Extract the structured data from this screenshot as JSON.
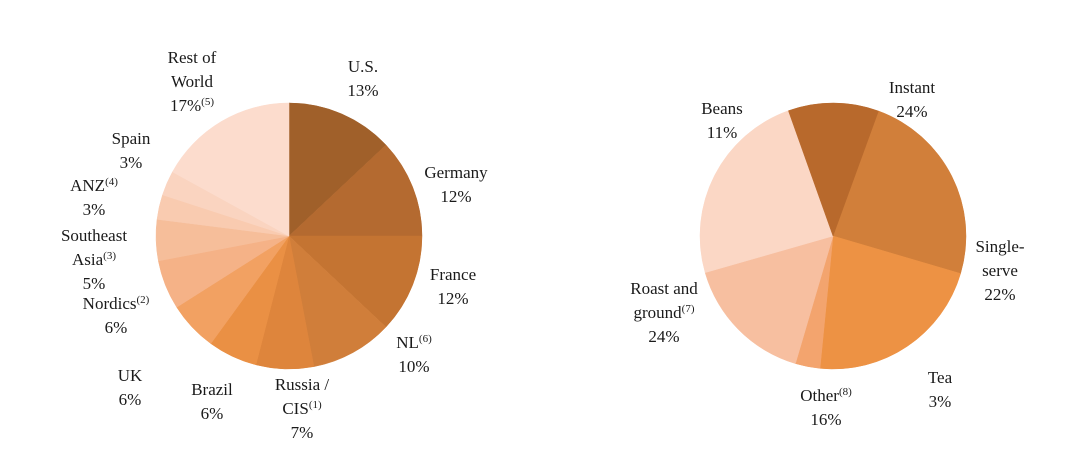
{
  "chart_data": [
    {
      "type": "pie",
      "slices": [
        {
          "label": "U.S.",
          "value": 13,
          "pct_text": "13%",
          "note": "",
          "color": "#A0602A"
        },
        {
          "label": "Germany",
          "value": 12,
          "pct_text": "12%",
          "note": "",
          "color": "#B46A30"
        },
        {
          "label": "France",
          "value": 12,
          "pct_text": "12%",
          "note": "",
          "color": "#C47432"
        },
        {
          "label": "NL",
          "value": 10,
          "pct_text": "10%",
          "note": "(6)",
          "color": "#D07E3A"
        },
        {
          "label": "Russia / CIS",
          "value": 7,
          "pct_text": "7%",
          "note": "(1)",
          "color": "#DE853C"
        },
        {
          "label": "Brazil",
          "value": 6,
          "pct_text": "6%",
          "note": "",
          "color": "#EA9044"
        },
        {
          "label": "UK",
          "value": 6,
          "pct_text": "6%",
          "note": "",
          "color": "#F2A162"
        },
        {
          "label": "Nordics",
          "value": 6,
          "pct_text": "6%",
          "note": "(2)",
          "color": "#F5B287"
        },
        {
          "label": "Southeast Asia",
          "value": 5,
          "pct_text": "5%",
          "note": "(3)",
          "color": "#F6BE9A"
        },
        {
          "label": "ANZ",
          "value": 3,
          "pct_text": "3%",
          "note": "(4)",
          "color": "#F9CBB0"
        },
        {
          "label": "Spain",
          "value": 3,
          "pct_text": "3%",
          "note": "",
          "color": "#FAD4C0"
        },
        {
          "label": "Rest of World",
          "value": 17,
          "pct_text": "17%",
          "note": "(5)",
          "color": "#FCDCCD"
        }
      ]
    },
    {
      "type": "pie",
      "slices": [
        {
          "label": "Instant",
          "value": 24,
          "pct_text": "24%",
          "note": "",
          "color": "#D17F3A"
        },
        {
          "label": "Single-serve",
          "value": 22,
          "pct_text": "22%",
          "note": "",
          "color": "#ED9244"
        },
        {
          "label": "Tea",
          "value": 3,
          "pct_text": "3%",
          "note": "",
          "color": "#F3A46E"
        },
        {
          "label": "Other",
          "value": 16,
          "pct_text": "16%",
          "note": "(8)",
          "color": "#F7BFA0"
        },
        {
          "label": "Roast and ground",
          "value": 24,
          "pct_text": "24%",
          "note": "(7)",
          "color": "#FBD7C5"
        },
        {
          "label": "Beans",
          "value": 11,
          "pct_text": "11%",
          "note": "",
          "color": "#B8692C"
        }
      ]
    }
  ],
  "labels": {
    "geo": {
      "us": {
        "l1": "U.S.",
        "l2": "13%"
      },
      "germany": {
        "l1": "Germany",
        "l2": "12%"
      },
      "france": {
        "l1": "France",
        "l2": "12%"
      },
      "nl": {
        "l1": "NL",
        "sup": "(6)",
        "l2": "10%"
      },
      "russia": {
        "l1": "Russia /",
        "l2": "CIS",
        "sup": "(1)",
        "l3": "7%"
      },
      "brazil": {
        "l1": "Brazil",
        "l2": "6%"
      },
      "uk": {
        "l1": "UK",
        "l2": "6%"
      },
      "nordics": {
        "l1": "Nordics",
        "sup": "(2)",
        "l2": "6%"
      },
      "sea": {
        "l1": "Southeast",
        "l2": "Asia",
        "sup": "(3)",
        "l3": "5%"
      },
      "anz": {
        "l1": "ANZ",
        "sup": "(4)",
        "l2": "3%"
      },
      "spain": {
        "l1": "Spain",
        "l2": "3%"
      },
      "row": {
        "l1": "Rest of",
        "l2": "World",
        "l3": "17%",
        "sup": "(5)"
      }
    },
    "cat": {
      "instant": {
        "l1": "Instant",
        "l2": "24%"
      },
      "single": {
        "l1": "Single-",
        "l2": "serve",
        "l3": "22%"
      },
      "tea": {
        "l1": "Tea",
        "l2": "3%"
      },
      "other": {
        "l1": "Other",
        "sup": "(8)",
        "l2": "16%"
      },
      "roast": {
        "l1": "Roast and",
        "l2": "ground",
        "sup": "(7)",
        "l3": "24%"
      },
      "beans": {
        "l1": "Beans",
        "l2": "11%"
      }
    }
  }
}
